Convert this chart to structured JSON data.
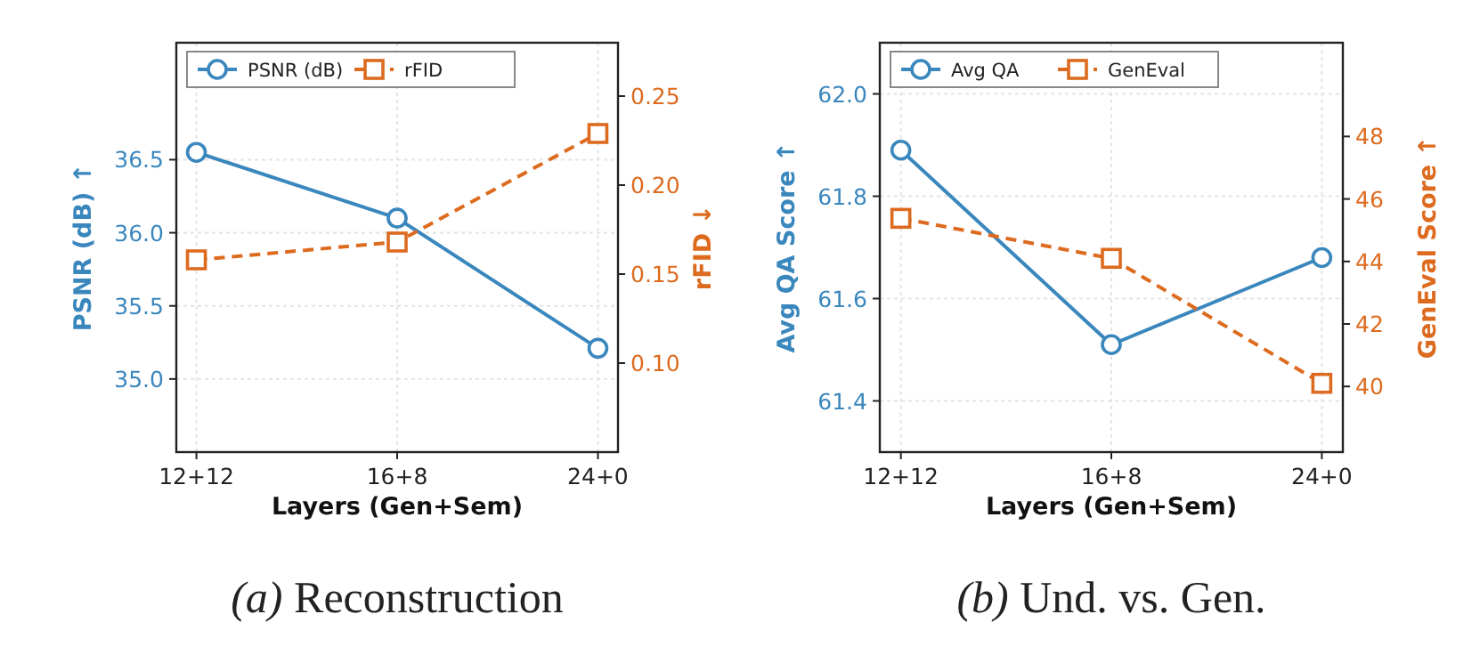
{
  "chart_data": [
    {
      "type": "line",
      "categories": [
        "12+12",
        "16+8",
        "24+0"
      ],
      "xlabel": "Layers (Gen+Sem)",
      "ylabel": "PSNR (dB) ↑",
      "y2label": "rFID ↓",
      "ylim": [
        34.5,
        37.3
      ],
      "yticks": [
        {
          "value": 35,
          "label": "35.0"
        },
        35.5,
        {
          "value": 36,
          "label": "36.0"
        },
        36.5
      ],
      "y2lim": [
        0.05,
        0.28
      ],
      "y2ticks": [
        {
          "value": 0.1,
          "label": "0.10"
        },
        0.15,
        {
          "value": 0.2,
          "label": "0.20"
        },
        0.25
      ],
      "grid": true,
      "legend": "top left",
      "annotations": [
        "(a) Reconstruction"
      ],
      "series": [
        {
          "name": "PSNR (dB)",
          "color": "#3a87bd",
          "values": [
            36.55,
            36.1,
            35.21
          ],
          "marker": "circle",
          "line_style": "solid"
        },
        {
          "name": "rFID",
          "color": "#dd6b1f",
          "values": [
            0.158,
            0.168,
            0.229
          ],
          "axis": "y2",
          "marker": "square",
          "line_style": "dashed"
        }
      ]
    },
    {
      "type": "line",
      "categories": [
        "12+12",
        "16+8",
        "24+0"
      ],
      "xlabel": "Layers (Gen+Sem)",
      "ylabel": "Avg QA Score ↑",
      "y2label": "GenEval Score ↑",
      "ylim": [
        61.3,
        62.1
      ],
      "yticks": [
        61.4,
        61.6,
        61.8,
        {
          "value": 62,
          "label": "62.0"
        }
      ],
      "y2lim": [
        37.9,
        51.0
      ],
      "y2ticks": [
        40,
        42,
        44,
        46,
        48
      ],
      "grid": true,
      "legend": "top left",
      "annotations": [
        "(b) Und. vs. Gen."
      ],
      "series": [
        {
          "name": "Avg QA",
          "color": "#3a87bd",
          "values": [
            61.89,
            61.51,
            61.68
          ],
          "marker": "circle",
          "line_style": "solid"
        },
        {
          "name": "GenEval",
          "color": "#dd6b1f",
          "values": [
            45.38,
            44.1,
            40.1
          ],
          "axis": "y2",
          "marker": "square",
          "line_style": "dashed"
        }
      ]
    }
  ]
}
